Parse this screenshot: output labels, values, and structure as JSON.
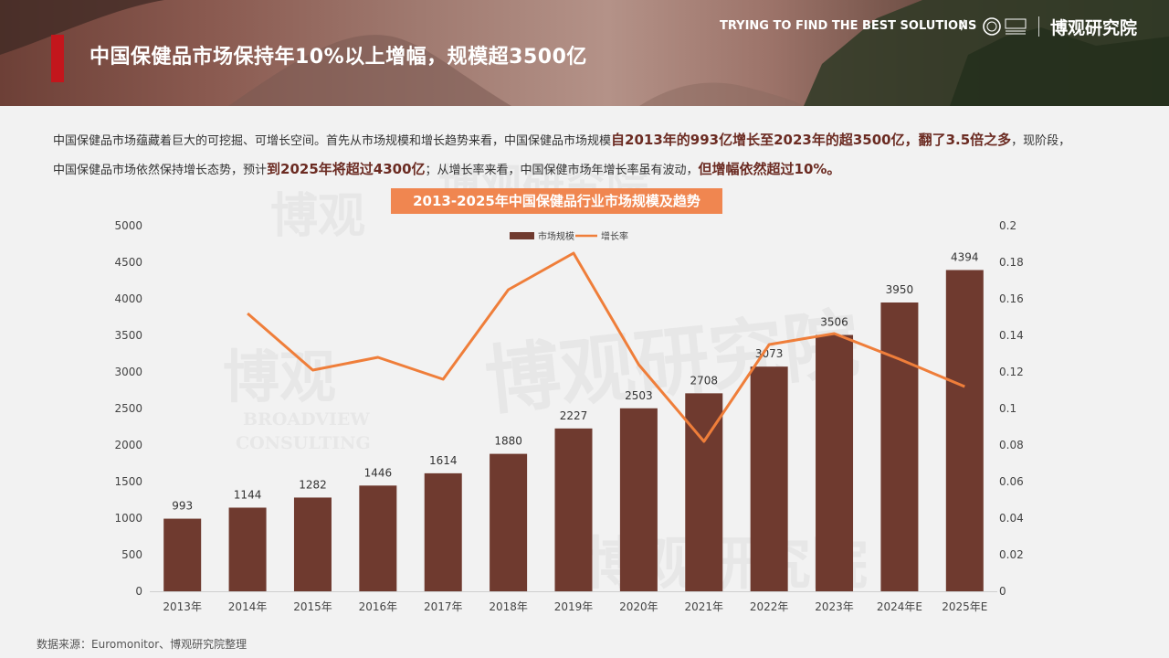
{
  "header": {
    "title": "中国保健品市场保持年10%以上增幅，规模超3500亿",
    "tagline": "TRYING TO FIND THE BEST SOLUTIONS",
    "slash": "/",
    "brand": "博观研究院",
    "accent_color": "#c3161c",
    "logo_icon": "broadview-logo-icon"
  },
  "intro": {
    "p1": "中国保健品市场蕴藏着巨大的可挖掘、可增长空间。首先从市场规模和增长趋势来看，中国保健品市场规模",
    "b1": "自2013年的993亿增长至2023年的超3500亿，翻了3.5倍之多",
    "p2": "，现阶段，中国保健品市场依然保持增长态势，预计",
    "b2": "到2025年将超过4300亿",
    "p3": "；从增长率来看，中国保健市场年增长率虽有波动，",
    "b3": "但增幅依然超过10%。"
  },
  "watermark": {
    "cn": "博观研究院",
    "cn_short": "博观",
    "en1": "BROADVIEW",
    "en2": "CONSULTING"
  },
  "chart_data": {
    "type": "bar",
    "title": "2013-2025年中国保健品行业市场规模及趋势",
    "categories": [
      "2013年",
      "2014年",
      "2015年",
      "2016年",
      "2017年",
      "2018年",
      "2019年",
      "2020年",
      "2021年",
      "2022年",
      "2023年",
      "2024年E",
      "2025年E"
    ],
    "series": [
      {
        "name": "市场规模",
        "type": "bar",
        "axis": "left",
        "color": "#6f3a2f",
        "values": [
          993,
          1144,
          1282,
          1446,
          1614,
          1880,
          2227,
          2503,
          2708,
          3073,
          3506,
          3950,
          4394
        ]
      },
      {
        "name": "增长率",
        "type": "line",
        "axis": "right",
        "color": "#ef7e3a",
        "values": [
          null,
          0.152,
          0.121,
          0.128,
          0.116,
          0.165,
          0.185,
          0.124,
          0.082,
          0.135,
          0.141,
          0.127,
          0.112
        ]
      }
    ],
    "ylim": [
      0,
      5000
    ],
    "yticks": [
      0,
      500,
      1000,
      1500,
      2000,
      2500,
      3000,
      3500,
      4000,
      4500,
      5000
    ],
    "y2lim": [
      0,
      0.2
    ],
    "y2ticks": [
      0,
      0.02,
      0.04,
      0.06,
      0.08,
      0.1,
      0.12,
      0.14,
      0.16,
      0.18,
      0.2
    ],
    "legend": "top-center",
    "grid": false
  },
  "source": "数据来源：Euromonitor、博观研究院整理"
}
